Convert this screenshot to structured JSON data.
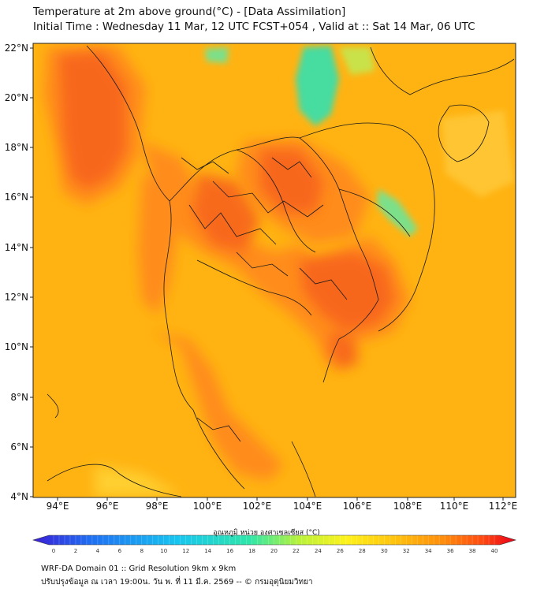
{
  "header": {
    "title_line1": "Temperature at 2m above ground(°C) - [Data Assimilation]",
    "title_line2": "Initial Time : Wednesday 11 Mar, 12 UTC FCST+054 , Valid at :: Sat 14 Mar, 06 UTC"
  },
  "axes": {
    "lat_labels": [
      "22°N",
      "20°N",
      "18°N",
      "16°N",
      "14°N",
      "12°N",
      "10°N",
      "8°N",
      "6°N",
      "4°N"
    ],
    "lon_labels": [
      "94°E",
      "96°E",
      "98°E",
      "100°E",
      "102°E",
      "104°E",
      "106°E",
      "108°E",
      "110°E",
      "112°E"
    ],
    "lat_values": [
      22,
      20,
      18,
      16,
      14,
      12,
      10,
      8,
      6,
      4
    ],
    "lon_values": [
      94,
      96,
      98,
      100,
      102,
      104,
      106,
      108,
      110,
      112
    ]
  },
  "colorbar": {
    "title": "อุณหภูมิ หน่วย องศาเซลเซียส (°C)",
    "ticks": [
      "0",
      "2",
      "4",
      "6",
      "8",
      "10",
      "12",
      "14",
      "16",
      "18",
      "20",
      "22",
      "24",
      "26",
      "28",
      "30",
      "32",
      "34",
      "36",
      "38",
      "40"
    ],
    "range": [
      0,
      40
    ],
    "colors": [
      "#3a1fd6",
      "#1f6ff2",
      "#17c6f0",
      "#2fe6a8",
      "#b8f23a",
      "#fff21a",
      "#ffc20d",
      "#ff8c0a",
      "#ff4a10",
      "#e8001a"
    ]
  },
  "colors": {
    "background_field": "#ffb312",
    "hot_field": "#ff7a1a",
    "hottest_field": "#f2561e",
    "cool_field": "#47dca0",
    "boundary": "#1a1a1a"
  },
  "footer": {
    "line1": "WRF-DA Domain 01 :: Grid Resolution 9km x 9km",
    "line2": "ปรับปรุงข้อมูล ณ เวลา 19:00น. วัน พ. ที่ 11 มี.ค. 2569 -- © กรมอุตุนิยมวิทยา"
  }
}
